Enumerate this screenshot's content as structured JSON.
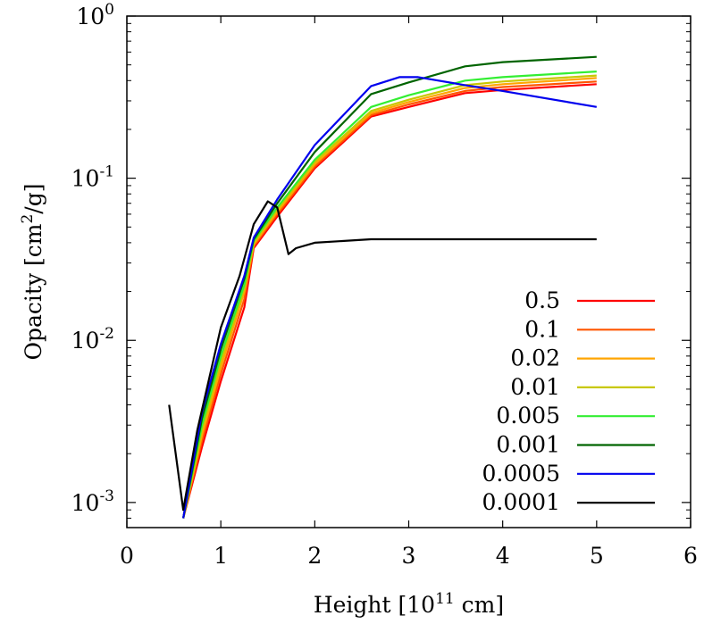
{
  "chart_data": {
    "type": "line",
    "xlabel": "Height [10",
    "xlabel_sup": "11",
    "xlabel_tail": " cm]",
    "ylabel": "Opacity [cm",
    "ylabel_sup": "2",
    "ylabel_tail": "/g]",
    "xlim": [
      0,
      6
    ],
    "ylim": [
      0.0007,
      1
    ],
    "yscale": "log",
    "x_ticks": [
      {
        "value": 0,
        "label": "0"
      },
      {
        "value": 1,
        "label": "1"
      },
      {
        "value": 2,
        "label": "2"
      },
      {
        "value": 3,
        "label": "3"
      },
      {
        "value": 4,
        "label": "4"
      },
      {
        "value": 5,
        "label": "5"
      },
      {
        "value": 6,
        "label": "6"
      }
    ],
    "y_ticks": [
      {
        "value": 1,
        "base": "10",
        "exp": "0"
      },
      {
        "value": 0.1,
        "base": "10",
        "exp": "-1"
      },
      {
        "value": 0.01,
        "base": "10",
        "exp": "-2"
      },
      {
        "value": 0.001,
        "base": "10",
        "exp": "-3"
      }
    ],
    "grid": false,
    "legend_position": "bottom-right",
    "series": [
      {
        "name": "0.5",
        "color": "#ff0000",
        "x": [
          0.6,
          0.8,
          1.0,
          1.25,
          1.35,
          1.6,
          2.0,
          2.6,
          3.0,
          3.6,
          4.0,
          5.0
        ],
        "y": [
          0.0008,
          0.0022,
          0.0056,
          0.016,
          0.037,
          0.058,
          0.115,
          0.24,
          0.275,
          0.335,
          0.35,
          0.38
        ]
      },
      {
        "name": "0.1",
        "color": "#ff5500",
        "x": [
          0.6,
          0.8,
          1.0,
          1.25,
          1.35,
          1.6,
          2.0,
          2.6,
          3.0,
          3.6,
          4.0,
          5.0
        ],
        "y": [
          0.0008,
          0.0024,
          0.0062,
          0.018,
          0.038,
          0.06,
          0.118,
          0.245,
          0.285,
          0.345,
          0.365,
          0.395
        ]
      },
      {
        "name": "0.02",
        "color": "#ffa500",
        "x": [
          0.6,
          0.8,
          1.0,
          1.25,
          1.35,
          1.6,
          2.0,
          2.6,
          3.0,
          3.6,
          4.0,
          5.0
        ],
        "y": [
          0.0008,
          0.0026,
          0.0068,
          0.02,
          0.039,
          0.062,
          0.122,
          0.252,
          0.295,
          0.36,
          0.38,
          0.415
        ]
      },
      {
        "name": "0.01",
        "color": "#c8c800",
        "x": [
          0.6,
          0.8,
          1.0,
          1.25,
          1.35,
          1.6,
          2.0,
          2.6,
          3.0,
          3.6,
          4.0,
          5.0
        ],
        "y": [
          0.0008,
          0.0028,
          0.0074,
          0.021,
          0.04,
          0.064,
          0.126,
          0.26,
          0.305,
          0.375,
          0.395,
          0.43
        ]
      },
      {
        "name": "0.005",
        "color": "#33ee33",
        "x": [
          0.6,
          0.8,
          1.0,
          1.25,
          1.35,
          1.6,
          2.0,
          2.6,
          3.0,
          3.6,
          4.0,
          5.0
        ],
        "y": [
          0.0008,
          0.003,
          0.008,
          0.022,
          0.041,
          0.066,
          0.13,
          0.275,
          0.325,
          0.4,
          0.42,
          0.455
        ]
      },
      {
        "name": "0.001",
        "color": "#006400",
        "x": [
          0.6,
          0.8,
          1.0,
          1.25,
          1.35,
          1.6,
          2.0,
          2.6,
          3.0,
          3.6,
          4.0,
          5.0
        ],
        "y": [
          0.0008,
          0.0033,
          0.0088,
          0.024,
          0.042,
          0.07,
          0.145,
          0.33,
          0.39,
          0.49,
          0.52,
          0.56
        ]
      },
      {
        "name": "0.0005",
        "color": "#0000ee",
        "x": [
          0.6,
          0.8,
          1.0,
          1.25,
          1.35,
          1.6,
          2.0,
          2.6,
          2.9,
          3.1,
          3.6,
          4.0,
          5.0
        ],
        "y": [
          0.0008,
          0.0036,
          0.0095,
          0.025,
          0.043,
          0.074,
          0.16,
          0.37,
          0.42,
          0.42,
          0.375,
          0.345,
          0.275
        ]
      },
      {
        "name": "0.0001",
        "color": "#000000",
        "x": [
          0.45,
          0.6,
          0.75,
          1.0,
          1.2,
          1.35,
          1.5,
          1.6,
          1.72,
          1.8,
          2.0,
          2.6,
          5.0
        ],
        "y": [
          0.004,
          0.0009,
          0.0028,
          0.012,
          0.025,
          0.052,
          0.072,
          0.066,
          0.034,
          0.037,
          0.04,
          0.042,
          0.042
        ]
      }
    ]
  }
}
